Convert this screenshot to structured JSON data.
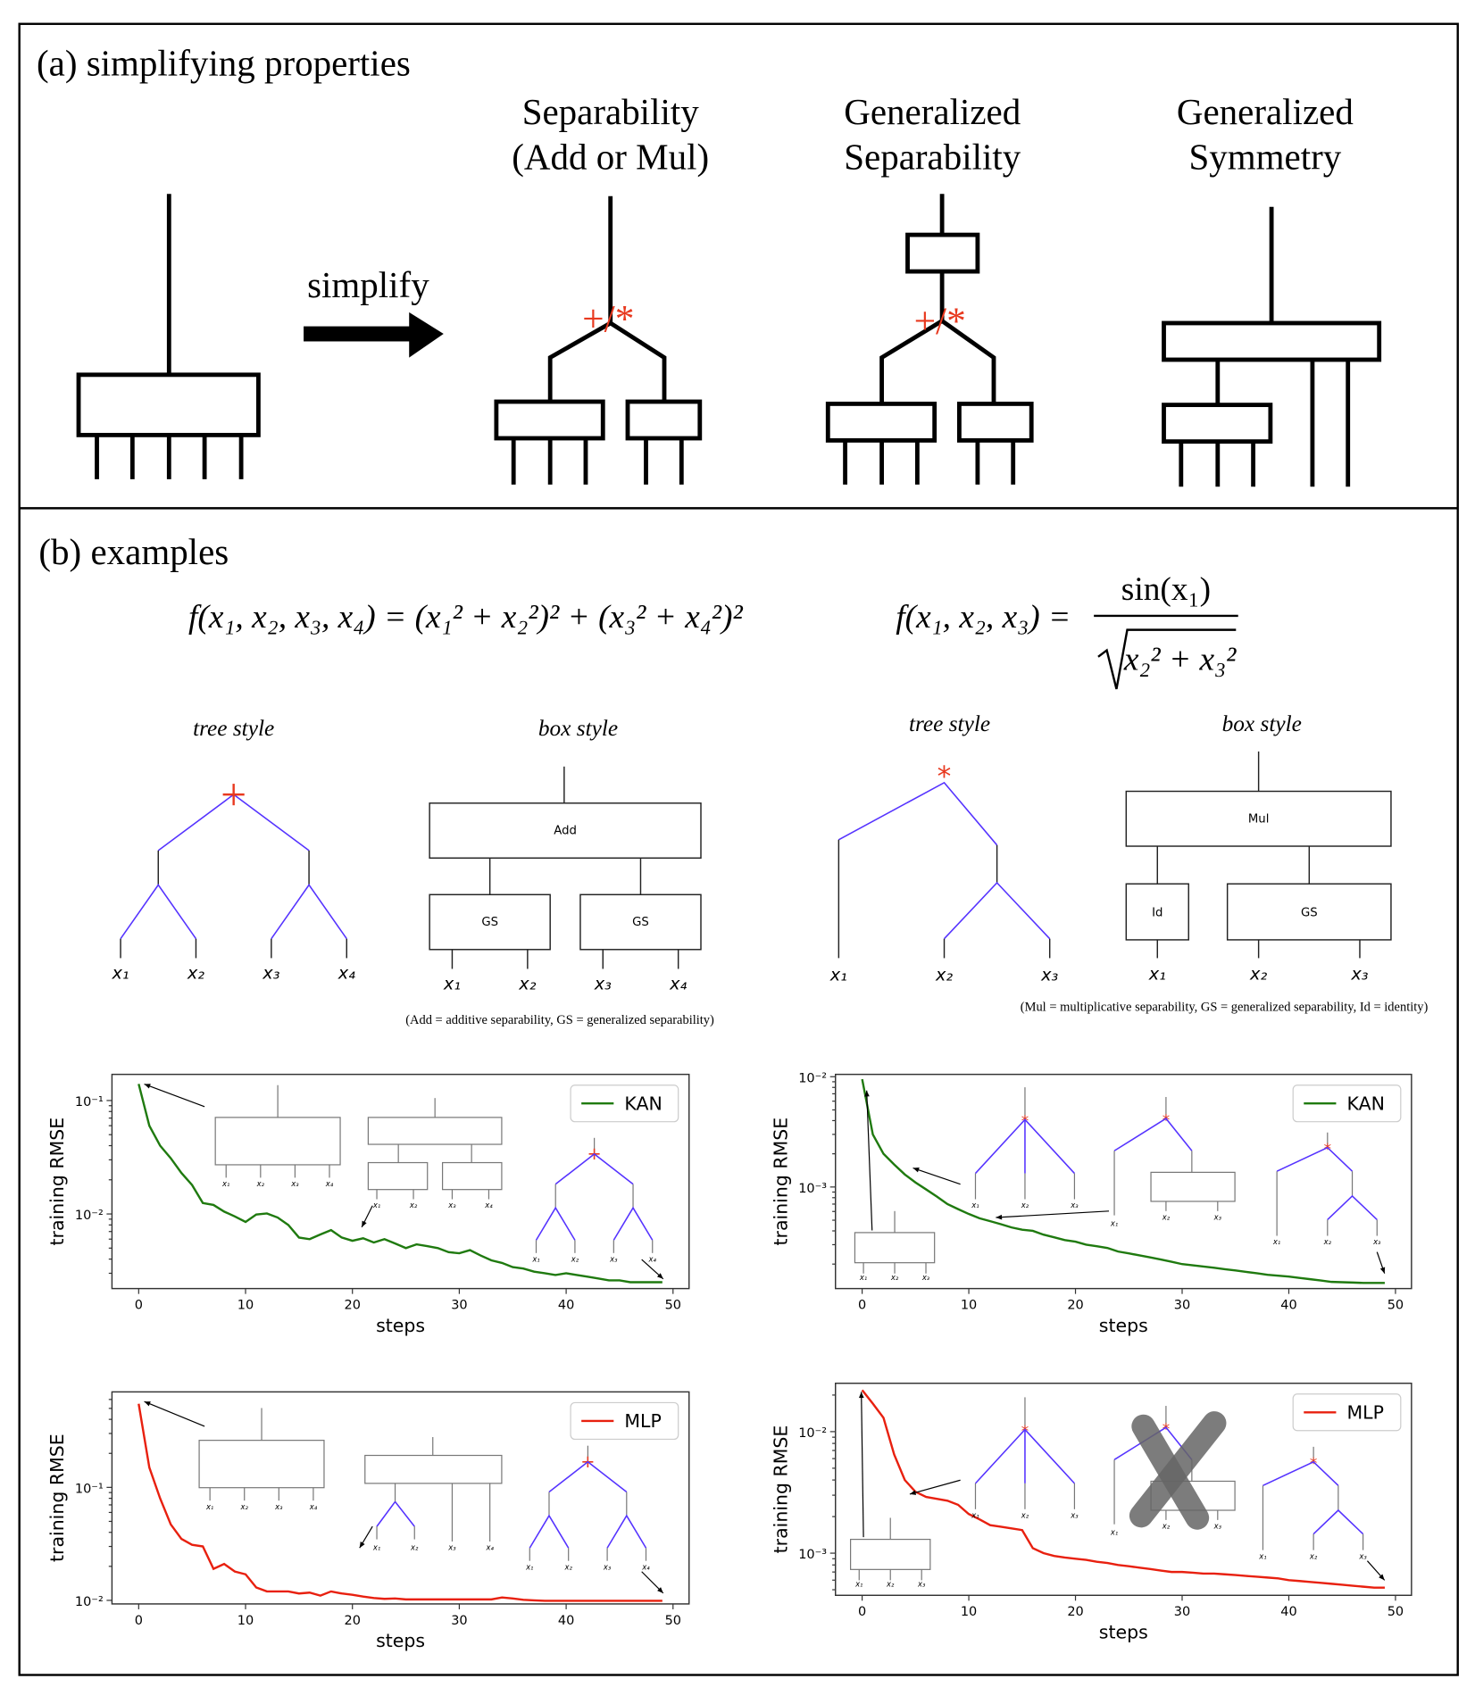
{
  "panel_a": {
    "title": "(a) simplifying properties",
    "arrow_label": "simplify",
    "columns": [
      {
        "line1": "Separability",
        "line2": "(Add or Mul)",
        "op": "+/*"
      },
      {
        "line1": "Generalized",
        "line2": "Separability",
        "op": "+/*"
      },
      {
        "line1": "Generalized",
        "line2": "Symmetry"
      }
    ]
  },
  "panel_b": {
    "title": "(b) examples",
    "eq1": "f(x₁, x₂, x₃, x₄) = (x₁² + x₂²)² + (x₃² + x₄²)²",
    "eq2_lhs": "f(x₁, x₂, x₃) =",
    "eq2_num": "sin(x₁)",
    "eq2_den": "x₂² + x₃²",
    "tree_style": "tree style",
    "box_style": "box style",
    "vars": [
      "x₁",
      "x₂",
      "x₃",
      "x₄"
    ],
    "add_label": "Add",
    "gs_label": "GS",
    "mul_label": "Mul",
    "id_label": "Id",
    "note1": "(Add = additive separability, GS = generalized separability)",
    "note2": "(Mul = multiplicative separability, GS = generalized separability, Id = identity)",
    "colors": {
      "op_marker": "#e8391f",
      "tree_edge": "#5533ff",
      "kan": "#1f7a0f",
      "mlp": "#e8200f"
    }
  },
  "chart_data": [
    {
      "type": "line",
      "name": "KAN",
      "xlabel": "steps",
      "ylabel": "training RMSE",
      "yscale": "log",
      "xlim": [
        -2.5,
        51.5
      ],
      "ylim": [
        0.0022,
        0.17
      ],
      "xticks": [
        0,
        10,
        20,
        30,
        40,
        50
      ],
      "yticks": [
        "10⁻¹",
        "10⁻²"
      ],
      "legend": "top-right",
      "color": "#1f7a0f",
      "x": [
        0,
        1,
        2,
        3,
        4,
        5,
        6,
        7,
        8,
        9,
        10,
        11,
        12,
        13,
        14,
        15,
        16,
        17,
        18,
        19,
        20,
        21,
        22,
        23,
        24,
        25,
        26,
        27,
        28,
        29,
        30,
        31,
        32,
        33,
        34,
        35,
        36,
        37,
        38,
        39,
        40,
        41,
        42,
        43,
        44,
        45,
        46,
        47,
        48,
        49
      ],
      "y": [
        0.14,
        0.06,
        0.04,
        0.031,
        0.023,
        0.018,
        0.0125,
        0.012,
        0.0105,
        0.0095,
        0.0085,
        0.0099,
        0.0101,
        0.0093,
        0.008,
        0.0062,
        0.006,
        0.0066,
        0.0072,
        0.0062,
        0.0058,
        0.0061,
        0.0056,
        0.006,
        0.0055,
        0.005,
        0.0054,
        0.0052,
        0.005,
        0.0046,
        0.0045,
        0.0048,
        0.0043,
        0.0039,
        0.0037,
        0.0034,
        0.0033,
        0.0031,
        0.003,
        0.0029,
        0.003,
        0.0029,
        0.0028,
        0.0027,
        0.0026,
        0.0026,
        0.0025,
        0.0025,
        0.0025,
        0.0025
      ]
    },
    {
      "type": "line",
      "name": "KAN",
      "xlabel": "steps",
      "ylabel": "training RMSE",
      "yscale": "log",
      "xlim": [
        -2.5,
        51.5
      ],
      "ylim": [
        0.00012,
        0.0105
      ],
      "xticks": [
        0,
        10,
        20,
        30,
        40,
        50
      ],
      "yticks": [
        "10⁻²",
        "10⁻³"
      ],
      "legend": "top-right",
      "color": "#1f7a0f",
      "x": [
        0,
        1,
        2,
        3,
        4,
        5,
        6,
        7,
        8,
        9,
        10,
        11,
        12,
        13,
        14,
        15,
        16,
        17,
        18,
        19,
        20,
        21,
        22,
        23,
        24,
        25,
        26,
        27,
        28,
        29,
        30,
        31,
        32,
        33,
        34,
        35,
        36,
        37,
        38,
        39,
        40,
        41,
        42,
        43,
        44,
        45,
        46,
        47,
        48,
        49
      ],
      "y": [
        0.0095,
        0.003,
        0.002,
        0.0016,
        0.0013,
        0.0011,
        0.00095,
        0.00082,
        0.0007,
        0.00063,
        0.00057,
        0.00052,
        0.00049,
        0.00046,
        0.00043,
        0.00041,
        0.0004,
        0.00037,
        0.00035,
        0.00033,
        0.00032,
        0.0003,
        0.00029,
        0.00028,
        0.00026,
        0.00025,
        0.00024,
        0.00023,
        0.00022,
        0.00021,
        0.0002,
        0.000195,
        0.00019,
        0.000185,
        0.00018,
        0.000175,
        0.00017,
        0.000165,
        0.00016,
        0.000157,
        0.000154,
        0.00015,
        0.000146,
        0.000142,
        0.000138,
        0.000137,
        0.000136,
        0.000135,
        0.000135,
        0.000135
      ]
    },
    {
      "type": "line",
      "name": "MLP",
      "xlabel": "steps",
      "ylabel": "training RMSE",
      "yscale": "log",
      "xlim": [
        -2.5,
        51.5
      ],
      "ylim": [
        0.0093,
        0.7
      ],
      "xticks": [
        0,
        10,
        20,
        30,
        40,
        50
      ],
      "yticks": [
        "10⁻¹",
        "10⁻²"
      ],
      "legend": "top-right",
      "color": "#e8200f",
      "x": [
        0,
        1,
        2,
        3,
        4,
        5,
        6,
        7,
        8,
        9,
        10,
        11,
        12,
        13,
        14,
        15,
        16,
        17,
        18,
        19,
        20,
        21,
        22,
        23,
        24,
        25,
        26,
        27,
        28,
        29,
        30,
        31,
        32,
        33,
        34,
        35,
        36,
        37,
        38,
        39,
        40,
        41,
        42,
        43,
        44,
        45,
        46,
        47,
        48,
        49
      ],
      "y": [
        0.55,
        0.15,
        0.08,
        0.047,
        0.035,
        0.031,
        0.03,
        0.019,
        0.021,
        0.018,
        0.017,
        0.013,
        0.012,
        0.012,
        0.012,
        0.0115,
        0.0117,
        0.011,
        0.012,
        0.0115,
        0.0112,
        0.0108,
        0.0105,
        0.0103,
        0.0104,
        0.0102,
        0.0102,
        0.0102,
        0.0102,
        0.0102,
        0.0102,
        0.0102,
        0.0102,
        0.0102,
        0.0106,
        0.0104,
        0.0101,
        0.01,
        0.0099,
        0.0099,
        0.0099,
        0.0099,
        0.0099,
        0.0099,
        0.0099,
        0.0099,
        0.0099,
        0.0099,
        0.0099,
        0.0099
      ]
    },
    {
      "type": "line",
      "name": "MLP",
      "xlabel": "steps",
      "ylabel": "training RMSE",
      "yscale": "log",
      "xlim": [
        -2.5,
        51.5
      ],
      "ylim": [
        0.00045,
        0.025
      ],
      "xticks": [
        0,
        10,
        20,
        30,
        40,
        50
      ],
      "yticks": [
        "10⁻²",
        "10⁻³"
      ],
      "legend": "top-right",
      "color": "#e8200f",
      "x": [
        0,
        1,
        2,
        3,
        4,
        5,
        6,
        7,
        8,
        9,
        10,
        11,
        12,
        13,
        14,
        15,
        16,
        17,
        18,
        19,
        20,
        21,
        22,
        23,
        24,
        25,
        26,
        27,
        28,
        29,
        30,
        31,
        32,
        33,
        34,
        35,
        36,
        37,
        38,
        39,
        40,
        41,
        42,
        43,
        44,
        45,
        46,
        47,
        48,
        49
      ],
      "y": [
        0.022,
        0.017,
        0.013,
        0.0065,
        0.004,
        0.0032,
        0.0029,
        0.0028,
        0.0027,
        0.0025,
        0.0021,
        0.0019,
        0.0017,
        0.00165,
        0.0016,
        0.00155,
        0.0011,
        0.001,
        0.00095,
        0.00092,
        0.0009,
        0.00088,
        0.00085,
        0.00083,
        0.0008,
        0.00078,
        0.00076,
        0.00074,
        0.00072,
        0.0007,
        0.0007,
        0.00069,
        0.00068,
        0.00068,
        0.00067,
        0.00066,
        0.00065,
        0.00064,
        0.00063,
        0.00062,
        0.0006,
        0.00059,
        0.00058,
        0.00057,
        0.00056,
        0.00055,
        0.00054,
        0.00053,
        0.00052,
        0.00052
      ]
    }
  ]
}
